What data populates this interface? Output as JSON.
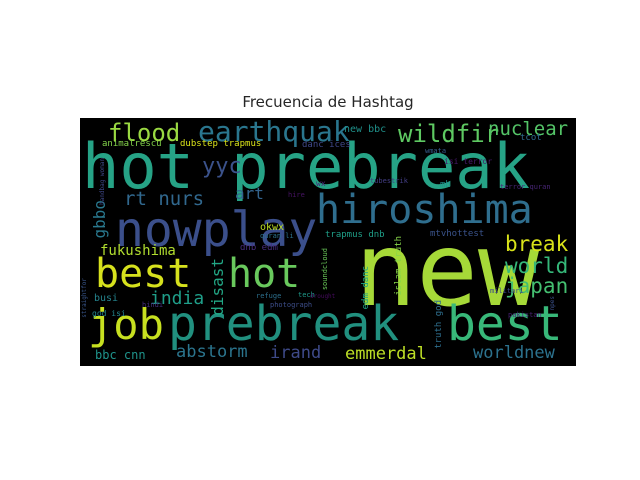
{
  "title": "Frecuencia de Hashtag",
  "words": [
    {
      "text": "hot prebreak",
      "color": "#26a386"
    },
    {
      "text": "new",
      "color": "#a6d938"
    },
    {
      "text": "nowplay",
      "color": "#3b4f8b"
    },
    {
      "text": "hiroshima",
      "color": "#2f6e8e"
    },
    {
      "text": "prebreak",
      "color": "#21907f"
    },
    {
      "text": "best",
      "color": "#38b879"
    },
    {
      "text": "best",
      "color": "#d6e11d"
    },
    {
      "text": "hot",
      "color": "#69c95d"
    },
    {
      "text": "job",
      "color": "#c7e020"
    },
    {
      "text": "earthquak",
      "color": "#2a768e"
    },
    {
      "text": "flood",
      "color": "#9ad942"
    },
    {
      "text": "wildfir",
      "color": "#5ec962"
    },
    {
      "text": "nuclear",
      "color": "#54c467"
    },
    {
      "text": "yyc",
      "color": "#3b528b"
    },
    {
      "text": "art",
      "color": "#33638d"
    },
    {
      "text": "rt nurs",
      "color": "#31688e"
    },
    {
      "text": "gbbo",
      "color": "#29788e"
    },
    {
      "text": "fukushima",
      "color": "#b1dd2f"
    },
    {
      "text": "india",
      "color": "#1f9e89"
    },
    {
      "text": "disast",
      "color": "#22a785"
    },
    {
      "text": "break",
      "color": "#d8e219"
    },
    {
      "text": "world",
      "color": "#35b779"
    },
    {
      "text": "japan",
      "color": "#44bf70"
    },
    {
      "text": "abstorm",
      "color": "#2b758e"
    },
    {
      "text": "irand",
      "color": "#3e4a89"
    },
    {
      "text": "emmerdal",
      "color": "#bddf26"
    },
    {
      "text": "worldnew",
      "color": "#2c728e"
    },
    {
      "text": "bbc cnn",
      "color": "#1f948c"
    },
    {
      "text": "busi",
      "color": "#25848e"
    },
    {
      "text": "new bbc",
      "color": "#20928c"
    },
    {
      "text": "animalrescu",
      "color": "#83d34b"
    },
    {
      "text": "dubstep trapmus",
      "color": "#dae319"
    },
    {
      "text": "danc ices",
      "color": "#3f4788"
    },
    {
      "text": "mh",
      "color": "#21918c"
    },
    {
      "text": "okwx",
      "color": "#bddf26"
    },
    {
      "text": "dnb edm",
      "color": "#472d7b"
    },
    {
      "text": "trapmus dnb",
      "color": "#1f9f88"
    },
    {
      "text": "mtvhottest",
      "color": "#3a538b"
    },
    {
      "text": "islam truth",
      "color": "#87d549"
    },
    {
      "text": "truth god",
      "color": "#2e6f8e"
    },
    {
      "text": "edm danc",
      "color": "#20a486"
    },
    {
      "text": "isi terror",
      "color": "#481a6c"
    },
    {
      "text": "god isi",
      "color": "#24878e"
    },
    {
      "text": "tcot",
      "color": "#2f6b8e"
    },
    {
      "text": "soundcloud",
      "color": "#6ccd5a"
    },
    {
      "text": "refuge",
      "color": "#2d708e"
    },
    {
      "text": "tech",
      "color": "#1e9b8a"
    },
    {
      "text": "photograph",
      "color": "#3d4e8a"
    },
    {
      "text": "hindi",
      "color": "#46307e"
    },
    {
      "text": "handbag woman",
      "color": "#3f4889"
    },
    {
      "text": "straightfor",
      "color": "#39568c"
    },
    {
      "text": "terror quran",
      "color": "#482576"
    },
    {
      "text": "pakistan",
      "color": "#482173"
    },
    {
      "text": "hire",
      "color": "#471365"
    },
    {
      "text": "quran li",
      "color": "#2c738e"
    },
    {
      "text": "tubestrik",
      "color": "#433e85"
    },
    {
      "text": "militari",
      "color": "#3e4c8a"
    },
    {
      "text": "wmata",
      "color": "#365d8d"
    },
    {
      "text": "drought",
      "color": "#460b5e"
    },
    {
      "text": "wx",
      "color": "#482878"
    },
    {
      "text": "npes",
      "color": "#3b518b"
    }
  ]
}
